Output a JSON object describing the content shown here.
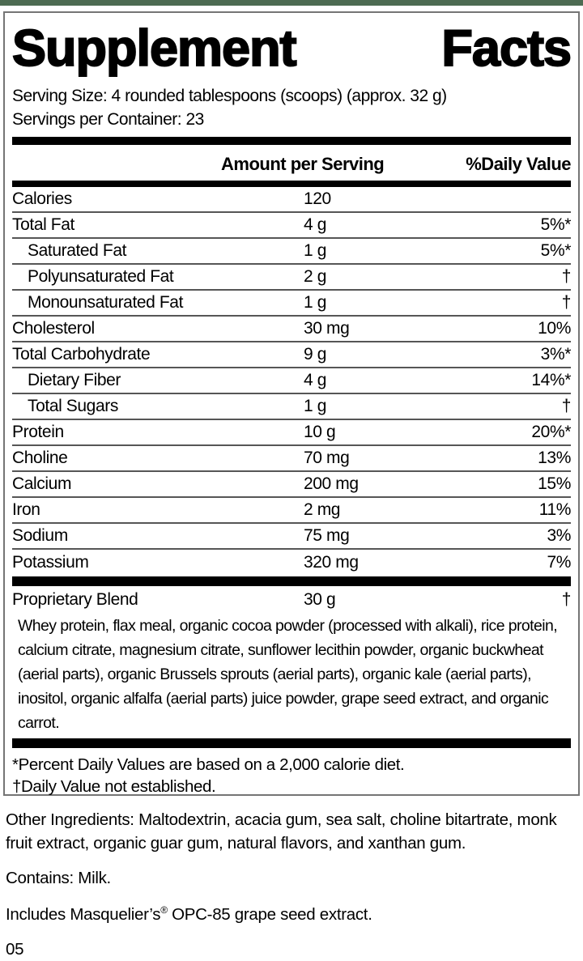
{
  "colors": {
    "top_bar": "#4d6b52",
    "bars": "#000000",
    "hairline": "#565656",
    "panel_border": "#757575"
  },
  "title": {
    "word1": "Supplement",
    "word2": "Facts"
  },
  "serving": {
    "size_line": "Serving Size: 4 rounded tablespoons (scoops) (approx. 32 g)",
    "per_container_line": "Servings per Container: 23"
  },
  "columns": {
    "amount": "Amount per Serving",
    "daily_value": "%Daily Value"
  },
  "nutrients": [
    {
      "label": "Calories",
      "amount": "120",
      "dv": "",
      "indent": false
    },
    {
      "label": "Total Fat",
      "amount": "4 g",
      "dv": "5%*",
      "indent": false
    },
    {
      "label": "Saturated Fat",
      "amount": "1 g",
      "dv": "5%*",
      "indent": true
    },
    {
      "label": "Polyunsaturated Fat",
      "amount": "2 g",
      "dv": "†",
      "indent": true
    },
    {
      "label": "Monounsaturated Fat",
      "amount": "1 g",
      "dv": "†",
      "indent": true
    },
    {
      "label": "Cholesterol",
      "amount": "30 mg",
      "dv": "10%",
      "indent": false
    },
    {
      "label": "Total Carbohydrate",
      "amount": "9 g",
      "dv": "3%*",
      "indent": false
    },
    {
      "label": "Dietary Fiber",
      "amount": "4 g",
      "dv": "14%*",
      "indent": true
    },
    {
      "label": "Total Sugars",
      "amount": "1 g",
      "dv": "†",
      "indent": true
    },
    {
      "label": "Protein",
      "amount": "10 g",
      "dv": "20%*",
      "indent": false
    },
    {
      "label": "Choline",
      "amount": "70 mg",
      "dv": "13%",
      "indent": false
    },
    {
      "label": "Calcium",
      "amount": "200 mg",
      "dv": "15%",
      "indent": false
    },
    {
      "label": "Iron",
      "amount": "2 mg",
      "dv": "11%",
      "indent": false
    },
    {
      "label": "Sodium",
      "amount": "75 mg",
      "dv": "3%",
      "indent": false
    },
    {
      "label": "Potassium",
      "amount": "320 mg",
      "dv": "7%",
      "indent": false
    }
  ],
  "proprietary_blend": {
    "label": "Proprietary Blend",
    "amount": "30 g",
    "dv": "†",
    "description": "Whey protein, flax meal, organic cocoa powder (processed with alkali), rice protein, calcium citrate, magnesium citrate, sunflower lecithin powder, organic buckwheat (aerial parts), organic Brussels sprouts (aerial parts), organic kale (aerial parts), inositol, organic alfalfa (aerial parts) juice powder, grape seed extract, and organic carrot."
  },
  "footnotes": {
    "percent": "*Percent Daily Values are based on a 2,000 calorie diet.",
    "dagger": "†Daily Value not established."
  },
  "other_ingredients": "Other Ingredients: Maltodextrin, acacia gum, sea salt, choline bitartrate, monk fruit extract, organic guar gum, natural flavors, and xanthan gum.",
  "contains": "Contains: Milk.",
  "includes": {
    "prefix": "Includes Masquelier’s",
    "registered": "®",
    "suffix": " OPC-85 grape seed extract."
  },
  "code": "05"
}
